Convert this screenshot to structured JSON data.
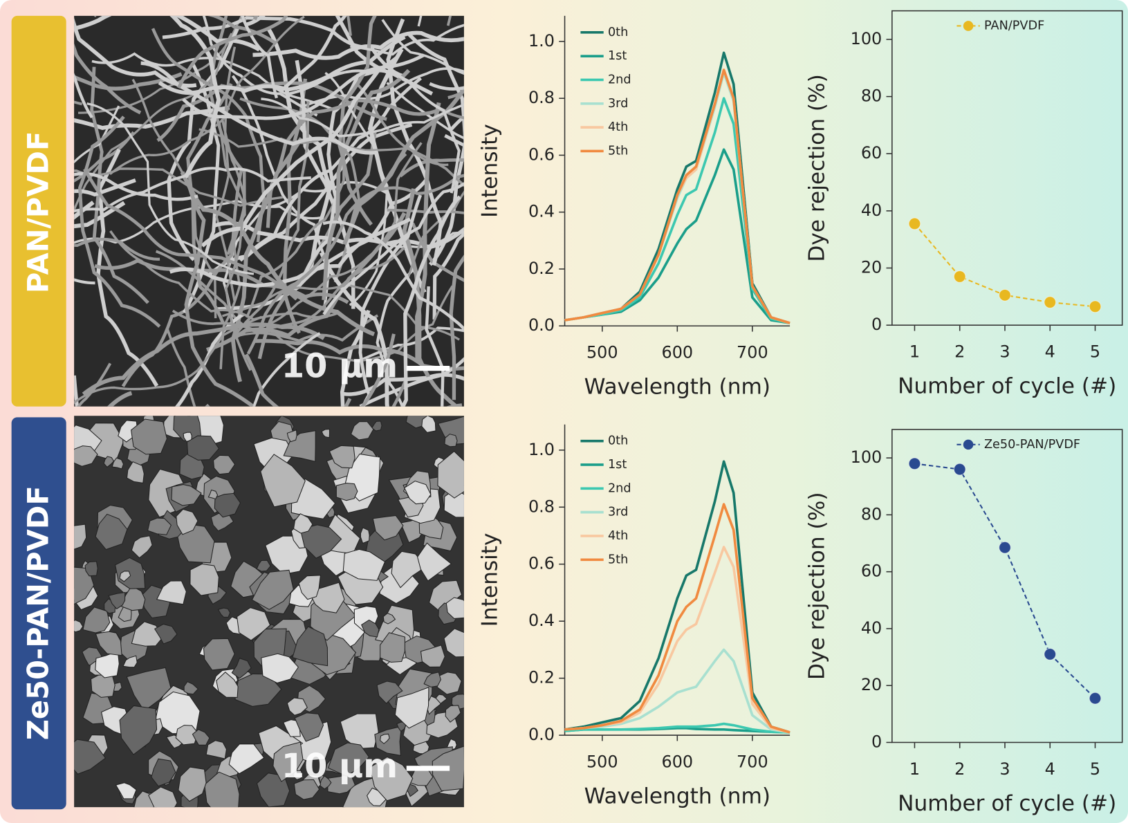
{
  "panels": [
    {
      "label": "PAN/PVDF",
      "scale_bar": "10 μm"
    },
    {
      "label": "Ze50-PAN/PVDF",
      "scale_bar": "10 μm"
    }
  ],
  "chart_data": [
    {
      "type": "line",
      "xlabel": "Wavelength (nm)",
      "ylabel": "Intensity",
      "x": [
        450,
        475,
        500,
        525,
        550,
        575,
        600,
        612,
        625,
        650,
        662,
        675,
        700,
        725,
        750
      ],
      "xlim": [
        450,
        750
      ],
      "xticks": [
        500,
        600,
        700
      ],
      "ylim": [
        0,
        1.09
      ],
      "yticks": [
        {
          "value": 0,
          "label": "0.0"
        },
        {
          "value": 0.2,
          "label": "0.2"
        },
        {
          "value": 0.4,
          "label": "0.4"
        },
        {
          "value": 0.6,
          "label": "0.6"
        },
        {
          "value": 0.8,
          "label": "0.8"
        },
        {
          "value": 1.0,
          "label": "1.0"
        }
      ],
      "legend": "upper left",
      "series": [
        {
          "name": "0th",
          "color": "#17786a",
          "values": [
            0.02,
            0.03,
            0.045,
            0.06,
            0.12,
            0.27,
            0.48,
            0.56,
            0.58,
            0.82,
            0.96,
            0.85,
            0.15,
            0.03,
            0.01
          ]
        },
        {
          "name": "1st",
          "color": "#1a9e8a",
          "values": [
            0.02,
            0.03,
            0.04,
            0.05,
            0.09,
            0.17,
            0.29,
            0.34,
            0.37,
            0.53,
            0.62,
            0.55,
            0.1,
            0.02,
            0.01
          ]
        },
        {
          "name": "2nd",
          "color": "#3cc8b0",
          "values": [
            0.02,
            0.03,
            0.04,
            0.055,
            0.1,
            0.22,
            0.39,
            0.46,
            0.48,
            0.68,
            0.8,
            0.71,
            0.13,
            0.025,
            0.01
          ]
        },
        {
          "name": "3rd",
          "color": "#a8e0d0",
          "values": [
            0.02,
            0.03,
            0.045,
            0.06,
            0.11,
            0.25,
            0.45,
            0.52,
            0.55,
            0.77,
            0.89,
            0.79,
            0.14,
            0.03,
            0.01
          ]
        },
        {
          "name": "4th",
          "color": "#f8c8a0",
          "values": [
            0.02,
            0.03,
            0.045,
            0.06,
            0.11,
            0.25,
            0.46,
            0.52,
            0.55,
            0.78,
            0.9,
            0.8,
            0.14,
            0.03,
            0.01
          ]
        },
        {
          "name": "5th",
          "color": "#f08a40",
          "values": [
            0.02,
            0.03,
            0.045,
            0.06,
            0.11,
            0.25,
            0.46,
            0.53,
            0.56,
            0.78,
            0.9,
            0.8,
            0.14,
            0.03,
            0.01
          ]
        }
      ]
    },
    {
      "type": "line",
      "xlabel": "Number of cycle (#)",
      "ylabel": "Dye rejection (%)",
      "x": [
        1,
        2,
        3,
        4,
        5
      ],
      "xlim": [
        0.5,
        5.6
      ],
      "xticks": [
        1,
        2,
        3,
        4,
        5
      ],
      "ylim": [
        0,
        110
      ],
      "yticks": [
        0,
        20,
        40,
        60,
        80,
        100
      ],
      "legend": "upper center",
      "line_style": "dashed",
      "marker": "circle",
      "series": [
        {
          "name": "PAN/PVDF",
          "color": "#e8b820",
          "values": [
            35.5,
            17,
            10.5,
            8,
            6.5
          ]
        }
      ]
    },
    {
      "type": "line",
      "xlabel": "Wavelength (nm)",
      "ylabel": "Intensity",
      "x": [
        450,
        475,
        500,
        525,
        550,
        575,
        600,
        612,
        625,
        650,
        662,
        675,
        700,
        725,
        750
      ],
      "xlim": [
        450,
        750
      ],
      "xticks": [
        500,
        600,
        700
      ],
      "ylim": [
        0,
        1.09
      ],
      "yticks": [
        {
          "value": 0,
          "label": "0.0"
        },
        {
          "value": 0.2,
          "label": "0.2"
        },
        {
          "value": 0.4,
          "label": "0.4"
        },
        {
          "value": 0.6,
          "label": "0.6"
        },
        {
          "value": 0.8,
          "label": "0.8"
        },
        {
          "value": 1.0,
          "label": "1.0"
        }
      ],
      "legend": "upper left",
      "series": [
        {
          "name": "0th",
          "color": "#17786a",
          "values": [
            0.02,
            0.03,
            0.045,
            0.06,
            0.12,
            0.27,
            0.48,
            0.56,
            0.58,
            0.82,
            0.96,
            0.85,
            0.15,
            0.03,
            0.01
          ]
        },
        {
          "name": "1st",
          "color": "#1a9e8a",
          "values": [
            0.015,
            0.02,
            0.02,
            0.02,
            0.02,
            0.022,
            0.025,
            0.025,
            0.022,
            0.02,
            0.02,
            0.018,
            0.015,
            0.012,
            0.01
          ]
        },
        {
          "name": "2nd",
          "color": "#3cc8b0",
          "values": [
            0.015,
            0.02,
            0.02,
            0.02,
            0.022,
            0.025,
            0.03,
            0.03,
            0.03,
            0.035,
            0.04,
            0.035,
            0.02,
            0.012,
            0.01
          ]
        },
        {
          "name": "3rd",
          "color": "#a8e0d0",
          "values": [
            0.02,
            0.025,
            0.03,
            0.04,
            0.06,
            0.1,
            0.15,
            0.16,
            0.17,
            0.26,
            0.3,
            0.26,
            0.07,
            0.02,
            0.01
          ]
        },
        {
          "name": "4th",
          "color": "#f8c8a0",
          "values": [
            0.02,
            0.025,
            0.035,
            0.045,
            0.08,
            0.18,
            0.33,
            0.37,
            0.39,
            0.57,
            0.66,
            0.59,
            0.11,
            0.025,
            0.01
          ]
        },
        {
          "name": "5th",
          "color": "#f08a40",
          "values": [
            0.02,
            0.025,
            0.035,
            0.05,
            0.09,
            0.21,
            0.4,
            0.45,
            0.48,
            0.7,
            0.81,
            0.72,
            0.13,
            0.03,
            0.01
          ]
        }
      ]
    },
    {
      "type": "line",
      "xlabel": "Number of cycle (#)",
      "ylabel": "Dye rejection (%)",
      "x": [
        1,
        2,
        3,
        4,
        5
      ],
      "xlim": [
        0.5,
        5.6
      ],
      "xticks": [
        1,
        2,
        3,
        4,
        5
      ],
      "ylim": [
        0,
        110
      ],
      "yticks": [
        0,
        20,
        40,
        60,
        80,
        100
      ],
      "legend": "upper center",
      "line_style": "dashed",
      "marker": "circle",
      "series": [
        {
          "name": "Ze50-PAN/PVDF",
          "color": "#2a4a90",
          "values": [
            98,
            96,
            68.5,
            31,
            15.5
          ]
        }
      ]
    }
  ]
}
